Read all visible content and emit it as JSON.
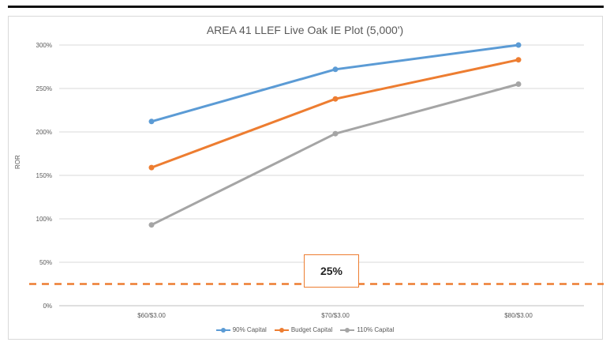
{
  "chart_data": {
    "type": "line",
    "title": "AREA 41 LLEF Live Oak IE Plot (5,000')",
    "xlabel": "",
    "ylabel": "ROR",
    "categories": [
      "$60/$3.00",
      "$70/$3.00",
      "$80/$3.00"
    ],
    "yticks": [
      "0%",
      "50%",
      "100%",
      "150%",
      "200%",
      "250%",
      "300%"
    ],
    "ylim": [
      0,
      300
    ],
    "grid": true,
    "legend_position": "bottom",
    "series": [
      {
        "name": "90% Capital",
        "color": "#5b9bd5",
        "values": [
          212,
          272,
          300
        ]
      },
      {
        "name": "Budget Capital",
        "color": "#ed7d31",
        "values": [
          159,
          238,
          283
        ]
      },
      {
        "name": "110% Capital",
        "color": "#a5a5a5",
        "values": [
          93,
          198,
          255
        ]
      }
    ],
    "hurdle": {
      "value": 25,
      "label": "25%",
      "color": "#ed7d31"
    }
  }
}
